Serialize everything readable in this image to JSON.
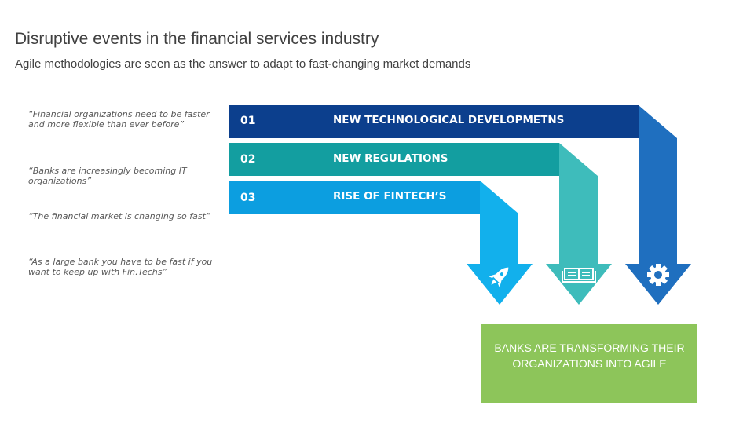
{
  "header": {
    "title": "Disruptive events in the financial services industry",
    "subtitle": "Agile methodologies are seen as the answer to adapt to fast-changing market demands"
  },
  "quotes": [
    "“Financial organizations need to be faster and more flexible than ever before”",
    "“Banks are increasingly becoming IT organizations”",
    "“The financial market is changing so fast”",
    "“As a large bank you have to be fast if you want to keep up with Fin.Techs”"
  ],
  "events": [
    {
      "number": "01",
      "label": "NEW TECHNOLOGICAL DEVELOPMETNS",
      "color": "#0c3f8d",
      "icon": "gear-icon",
      "arrow_color": "#1f6fbf"
    },
    {
      "number": "02",
      "label": "NEW REGULATIONS",
      "color": "#139ea0",
      "icon": "book-icon",
      "arrow_color": "#3ebcbb"
    },
    {
      "number": "03",
      "label": "RISE OF FINTECH’S",
      "color": "#0c9ee0",
      "icon": "rocket-icon",
      "arrow_color": "#12b0ec"
    }
  ],
  "result": {
    "text": "BANKS ARE TRANSFORMING THEIR ORGANIZATIONS INTO AGILE",
    "color": "#8dc55a"
  }
}
